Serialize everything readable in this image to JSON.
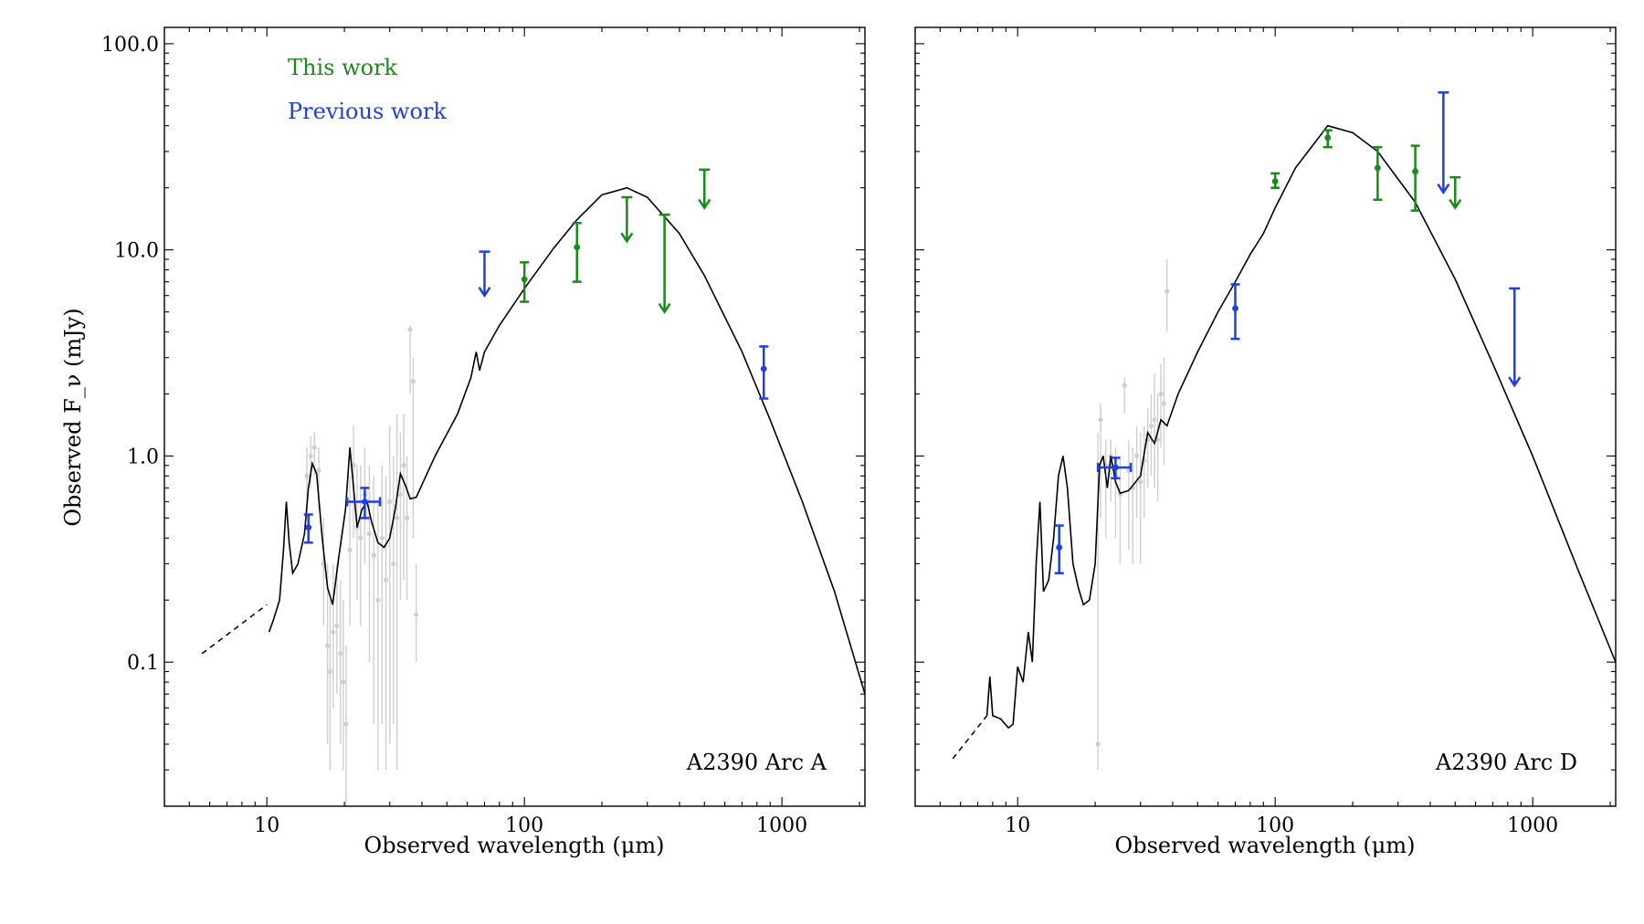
{
  "chart_data": {
    "type": "scatter",
    "ylabel": "Observed F_ν (mJy)",
    "yscale": "log",
    "xscale": "log",
    "ylim": [
      0.02,
      120
    ],
    "xlim": [
      4,
      2100
    ],
    "y_ticks": [
      {
        "value": 0.1,
        "label": "0.1"
      },
      {
        "value": 1,
        "label": "1.0"
      },
      {
        "value": 10,
        "label": "10.0"
      },
      {
        "value": 100,
        "label": "100.0"
      }
    ],
    "legend": [
      {
        "label": "This work",
        "color": "#1a8a1a"
      },
      {
        "label": "Previous work",
        "color": "#1f3fe0"
      }
    ],
    "colors": {
      "this_work": "#1a8a1a",
      "previous_work": "#1f3fe0",
      "spectrum": "#cfcfcf",
      "model": "#000000"
    },
    "panels": [
      {
        "title": "A2390 Arc A",
        "xlabel": "Observed wavelength (μm)",
        "x_ticks": [
          {
            "value": 10,
            "label": "10"
          },
          {
            "value": 100,
            "label": "100"
          },
          {
            "value": 1000,
            "label": "1000"
          }
        ],
        "model": [
          [
            10.2,
            0.14
          ],
          [
            10.6,
            0.16
          ],
          [
            11.2,
            0.2
          ],
          [
            11.6,
            0.35
          ],
          [
            11.9,
            0.6
          ],
          [
            12.2,
            0.38
          ],
          [
            12.6,
            0.27
          ],
          [
            13.2,
            0.3
          ],
          [
            14,
            0.42
          ],
          [
            14.5,
            0.7
          ],
          [
            15,
            0.92
          ],
          [
            15.6,
            0.82
          ],
          [
            16.4,
            0.4
          ],
          [
            17.2,
            0.23
          ],
          [
            18,
            0.19
          ],
          [
            19,
            0.32
          ],
          [
            20.2,
            0.55
          ],
          [
            21,
            1.1
          ],
          [
            21.6,
            0.75
          ],
          [
            22.4,
            0.45
          ],
          [
            23.4,
            0.55
          ],
          [
            24.5,
            0.6
          ],
          [
            25.5,
            0.48
          ],
          [
            27,
            0.38
          ],
          [
            28.5,
            0.36
          ],
          [
            30,
            0.4
          ],
          [
            31.5,
            0.55
          ],
          [
            33,
            0.82
          ],
          [
            34.5,
            0.72
          ],
          [
            36,
            0.62
          ],
          [
            38,
            0.63
          ],
          [
            45,
            1.0
          ],
          [
            55,
            1.6
          ],
          [
            62,
            2.4
          ],
          [
            65,
            3.2
          ],
          [
            67,
            2.6
          ],
          [
            70,
            3.2
          ],
          [
            80,
            4.3
          ],
          [
            100,
            6.5
          ],
          [
            130,
            10.2
          ],
          [
            160,
            14
          ],
          [
            200,
            18.5
          ],
          [
            250,
            20
          ],
          [
            300,
            18
          ],
          [
            400,
            12
          ],
          [
            500,
            7.5
          ],
          [
            700,
            3.2
          ],
          [
            900,
            1.5
          ],
          [
            1200,
            0.6
          ],
          [
            1600,
            0.22
          ],
          [
            2100,
            0.07
          ]
        ],
        "model_extrapolation": [
          [
            5.6,
            0.11
          ],
          [
            10,
            0.19
          ]
        ],
        "this_work": [
          {
            "x": 100,
            "y": 7.2,
            "ylo": 5.6,
            "yhi": 8.7
          },
          {
            "x": 160,
            "y": 10.3,
            "ylo": 7.0,
            "yhi": 13.5
          },
          {
            "x": 250,
            "upper_limit": 18.0,
            "arrow_to": 11.0
          },
          {
            "x": 350,
            "upper_limit": 14.8,
            "arrow_to": 5.0
          },
          {
            "x": 500,
            "upper_limit": 24.5,
            "arrow_to": 16.0
          }
        ],
        "previous_work": [
          {
            "x": 14.5,
            "y": 0.45,
            "ylo": 0.38,
            "yhi": 0.52
          },
          {
            "x": 24,
            "y": 0.6,
            "ylo": 0.5,
            "yhi": 0.7,
            "xlo": 20.5,
            "xhi": 27.5
          },
          {
            "x": 70,
            "upper_limit": 9.8,
            "arrow_to": 6.0
          },
          {
            "x": 850,
            "y": 2.65,
            "ylo": 1.9,
            "yhi": 3.4
          }
        ],
        "spectrum": [
          [
            14.3,
            0.8,
            0.5,
            1.1
          ],
          [
            14.8,
            1.0,
            0.7,
            1.25
          ],
          [
            15.3,
            1.1,
            0.8,
            1.3
          ],
          [
            15.9,
            0.85,
            0.55,
            1.1
          ],
          [
            16.6,
            0.3,
            0.15,
            0.5
          ],
          [
            17.2,
            0.12,
            0.04,
            0.3
          ],
          [
            17.6,
            0.09,
            0.03,
            0.2
          ],
          [
            18.1,
            0.14,
            0.06,
            0.3
          ],
          [
            18.7,
            0.15,
            0.07,
            0.3
          ],
          [
            19.3,
            0.11,
            0.04,
            0.25
          ],
          [
            19.8,
            0.08,
            0.03,
            0.2
          ],
          [
            20.3,
            0.05,
            0.02,
            0.12
          ],
          [
            21,
            0.35,
            0.15,
            0.8
          ],
          [
            21.7,
            0.9,
            0.4,
            1.4
          ],
          [
            22.4,
            0.45,
            0.2,
            0.9
          ],
          [
            23.1,
            0.4,
            0.15,
            0.9
          ],
          [
            24,
            0.65,
            0.3,
            1.1
          ],
          [
            25,
            0.42,
            0.1,
            0.9
          ],
          [
            26,
            0.33,
            0.05,
            0.8
          ],
          [
            27,
            0.2,
            0.03,
            0.6
          ],
          [
            28,
            0.4,
            0.05,
            0.9
          ],
          [
            29,
            0.25,
            0.03,
            0.8
          ],
          [
            30,
            0.6,
            0.04,
            1.4
          ],
          [
            31,
            0.3,
            0.05,
            1.0
          ],
          [
            32,
            0.5,
            0.03,
            1.6
          ],
          [
            33,
            0.65,
            0.2,
            1.3
          ],
          [
            34,
            0.9,
            0.25,
            1.6
          ],
          [
            35,
            0.5,
            0.2,
            1.0
          ],
          [
            36,
            4.1,
            2.0,
            4.3
          ],
          [
            37,
            2.3,
            0.4,
            3.0
          ],
          [
            38,
            0.17,
            0.1,
            0.3
          ]
        ]
      },
      {
        "title": "A2390 Arc D",
        "xlabel": "Observed wavelength (μm)",
        "x_ticks": [
          {
            "value": 10,
            "label": "10"
          },
          {
            "value": 100,
            "label": "100"
          },
          {
            "value": 1000,
            "label": "1000"
          }
        ],
        "model": [
          [
            7.6,
            0.055
          ],
          [
            7.8,
            0.085
          ],
          [
            8,
            0.055
          ],
          [
            8.6,
            0.053
          ],
          [
            9.2,
            0.048
          ],
          [
            9.6,
            0.05
          ],
          [
            10,
            0.095
          ],
          [
            10.5,
            0.08
          ],
          [
            11,
            0.14
          ],
          [
            11.4,
            0.1
          ],
          [
            11.8,
            0.3
          ],
          [
            12.2,
            0.6
          ],
          [
            12.6,
            0.22
          ],
          [
            13.2,
            0.25
          ],
          [
            13.8,
            0.4
          ],
          [
            14.4,
            0.8
          ],
          [
            15,
            1.0
          ],
          [
            15.6,
            0.7
          ],
          [
            16.4,
            0.3
          ],
          [
            17.2,
            0.23
          ],
          [
            18,
            0.19
          ],
          [
            19,
            0.2
          ],
          [
            20,
            0.3
          ],
          [
            20.8,
            0.9
          ],
          [
            21.5,
            1.0
          ],
          [
            22.3,
            0.7
          ],
          [
            23,
            1.0
          ],
          [
            24,
            0.75
          ],
          [
            25,
            0.66
          ],
          [
            27,
            0.68
          ],
          [
            30,
            0.8
          ],
          [
            32,
            1.3
          ],
          [
            34,
            1.15
          ],
          [
            36,
            1.5
          ],
          [
            38,
            1.4
          ],
          [
            42,
            2.0
          ],
          [
            50,
            3.2
          ],
          [
            60,
            5.0
          ],
          [
            70,
            7.0
          ],
          [
            80,
            9.5
          ],
          [
            90,
            12
          ],
          [
            100,
            16
          ],
          [
            120,
            25
          ],
          [
            150,
            36
          ],
          [
            160,
            40
          ],
          [
            200,
            37
          ],
          [
            250,
            30
          ],
          [
            350,
            17
          ],
          [
            500,
            7.2
          ],
          [
            700,
            2.8
          ],
          [
            1000,
            1.0
          ],
          [
            1500,
            0.28
          ],
          [
            2100,
            0.1
          ]
        ],
        "model_extrapolation": [
          [
            5.6,
            0.034
          ],
          [
            7.6,
            0.055
          ]
        ],
        "this_work": [
          {
            "x": 100,
            "y": 21.5,
            "ylo": 20.0,
            "yhi": 23.5
          },
          {
            "x": 160,
            "y": 35,
            "ylo": 31.5,
            "yhi": 38
          },
          {
            "x": 250,
            "y": 25,
            "ylo": 17.5,
            "yhi": 31.5
          },
          {
            "x": 350,
            "y": 24,
            "ylo": 15.5,
            "yhi": 32.0
          },
          {
            "x": 500,
            "upper_limit": 22.5,
            "arrow_to": 16.0
          }
        ],
        "previous_work": [
          {
            "x": 14.5,
            "y": 0.36,
            "ylo": 0.27,
            "yhi": 0.46
          },
          {
            "x": 24,
            "y": 0.88,
            "ylo": 0.78,
            "yhi": 0.98,
            "xlo": 20.5,
            "xhi": 27.5
          },
          {
            "x": 70,
            "y": 5.2,
            "ylo": 3.7,
            "yhi": 6.8
          },
          {
            "x": 450,
            "upper_limit": 58,
            "arrow_to": 19.0
          },
          {
            "x": 850,
            "upper_limit": 6.5,
            "arrow_to": 2.2
          }
        ],
        "spectrum": [
          [
            20.5,
            0.04,
            0.03,
            1.3
          ],
          [
            21,
            1.5,
            0.5,
            1.8
          ],
          [
            22,
            0.9,
            0.4,
            1.2
          ],
          [
            23,
            1.0,
            0.6,
            1.2
          ],
          [
            24,
            0.8,
            0.4,
            1.1
          ],
          [
            25,
            0.65,
            0.3,
            1.0
          ],
          [
            26,
            2.2,
            1.6,
            2.4
          ],
          [
            27,
            0.85,
            0.35,
            1.2
          ],
          [
            28,
            0.7,
            0.3,
            1.1
          ],
          [
            29,
            1.0,
            0.5,
            1.4
          ],
          [
            30,
            0.75,
            0.3,
            1.3
          ],
          [
            31,
            0.95,
            0.5,
            1.4
          ],
          [
            32,
            1.2,
            0.7,
            1.7
          ],
          [
            33,
            1.4,
            0.8,
            2.0
          ],
          [
            34,
            1.5,
            0.7,
            2.5
          ],
          [
            35,
            1.2,
            0.6,
            2.0
          ],
          [
            36,
            2.0,
            1.1,
            2.8
          ],
          [
            37,
            1.8,
            0.9,
            3.0
          ],
          [
            38,
            6.3,
            4.0,
            9.0
          ]
        ]
      }
    ]
  }
}
